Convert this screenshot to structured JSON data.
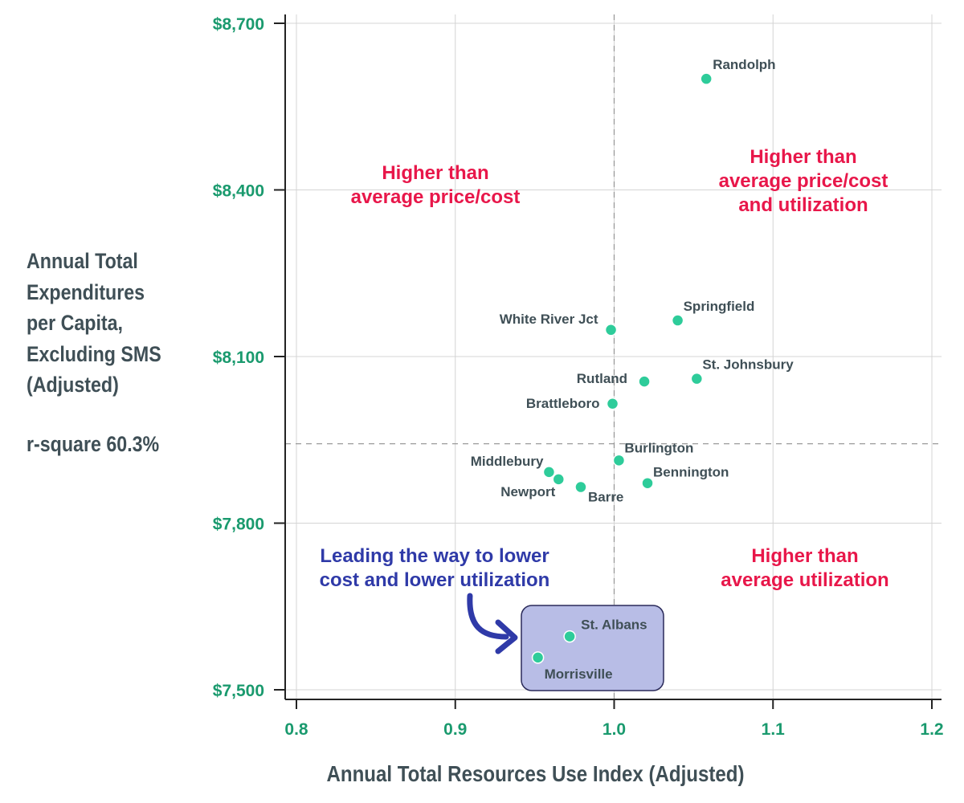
{
  "chart_data": {
    "type": "scatter",
    "xlabel": "Annual Total Resources Use Index (Adjusted)",
    "ylabel_lines": [
      "Annual Total",
      "Expenditures",
      "per Capita,",
      "Excluding SMS",
      "(Adjusted)"
    ],
    "rsquare_text": "r-square 60.3%",
    "xlim": [
      0.8,
      1.2
    ],
    "ylim": [
      7500,
      8700
    ],
    "x_ticks": [
      0.8,
      0.9,
      1.0,
      1.1,
      1.2
    ],
    "x_tick_labels": [
      "0.8",
      "0.9",
      "1.0",
      "1.1",
      "1.2"
    ],
    "y_ticks": [
      7500,
      7800,
      8100,
      8400,
      8700
    ],
    "y_tick_labels": [
      "$7,500",
      "$7,800",
      "$8,100",
      "$8,400",
      "$8,700"
    ],
    "grid": true,
    "reference_lines": {
      "x": 1.0,
      "y": 7943
    },
    "marker_color": "#2ecc9a",
    "points": [
      {
        "label": "Randolph",
        "x": 1.058,
        "y": 8600
      },
      {
        "label": "Springfield",
        "x": 1.04,
        "y": 8165
      },
      {
        "label": "White River Jct",
        "x": 0.998,
        "y": 8148
      },
      {
        "label": "St. Johnsbury",
        "x": 1.052,
        "y": 8060
      },
      {
        "label": "Rutland",
        "x": 1.019,
        "y": 8055
      },
      {
        "label": "Brattleboro",
        "x": 0.999,
        "y": 8015
      },
      {
        "label": "Burlington",
        "x": 1.003,
        "y": 7913
      },
      {
        "label": "Middlebury",
        "x": 0.959,
        "y": 7892
      },
      {
        "label": "Newport",
        "x": 0.965,
        "y": 7879
      },
      {
        "label": "Bennington",
        "x": 1.021,
        "y": 7872
      },
      {
        "label": "Barre",
        "x": 0.979,
        "y": 7865
      },
      {
        "label": "St. Albans",
        "x": 0.972,
        "y": 7596
      },
      {
        "label": "Morrisville",
        "x": 0.952,
        "y": 7558
      }
    ],
    "annotations": {
      "upper_left": [
        "Higher than",
        "average price/cost"
      ],
      "upper_right": [
        "Higher than",
        "average price/cost",
        "and utilization"
      ],
      "lower_right": [
        "Higher than",
        "average utilization"
      ],
      "lower_left": [
        "Leading the way to lower",
        "cost and lower utilization"
      ]
    },
    "highlight_box_color": "#b8bde6",
    "highlight_points": [
      "St. Albans",
      "Morrisville"
    ]
  }
}
